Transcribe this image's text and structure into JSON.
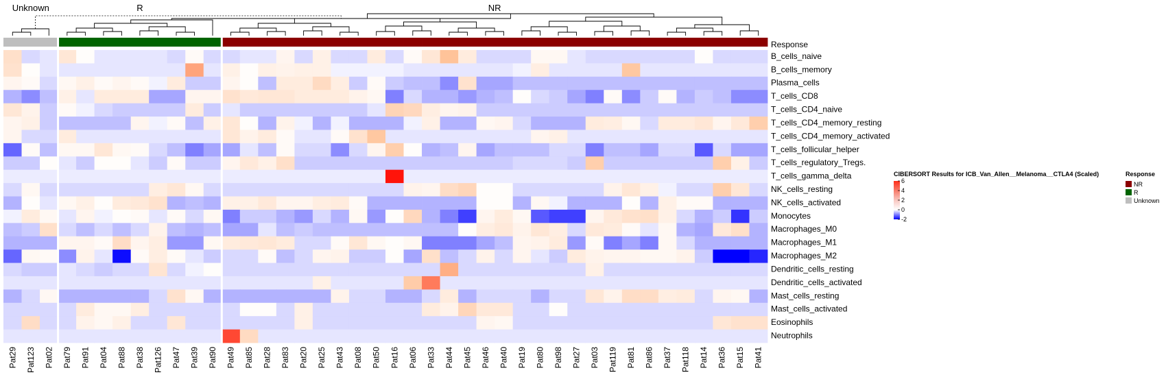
{
  "chart_data": {
    "type": "heatmap",
    "group_labels": [
      "Unknown",
      "R",
      "NR"
    ],
    "annotation_row_label": "Response",
    "legend_title": "CIBERSORT Results for ICB_Van_Allen__Melanoma__CTLA4 (Scaled)",
    "color_scale": {
      "ticks": [
        6,
        4,
        2,
        0,
        -2
      ],
      "min": -2,
      "mid": 0,
      "max": 6,
      "low_color": "#0000ff",
      "mid_color": "#ffffff",
      "high_color": "#ff0000"
    },
    "response_legend": {
      "title": "Response",
      "items": [
        {
          "label": "NR",
          "color": "#8b0000"
        },
        {
          "label": "R",
          "color": "#006400"
        },
        {
          "label": "Unknown",
          "color": "#bebebe"
        }
      ]
    },
    "samples": [
      "Pat29",
      "Pat123",
      "Pat02",
      "Pat79",
      "Pat91",
      "Pat04",
      "Pat88",
      "Pat38",
      "Pat126",
      "Pat47",
      "Pat39",
      "Pat90",
      "Pat49",
      "Pat85",
      "Pat28",
      "Pat83",
      "Pat20",
      "Pat25",
      "Pat43",
      "Pat08",
      "Pat50",
      "Pat16",
      "Pat06",
      "Pat33",
      "Pat44",
      "Pat45",
      "Pat46",
      "Pat40",
      "Pat19",
      "Pat80",
      "Pat98",
      "Pat27",
      "Pat03",
      "Pat119",
      "Pat81",
      "Pat86",
      "Pat37",
      "Pat118",
      "Pat14",
      "Pat36",
      "Pat15",
      "Pat41"
    ],
    "responses": [
      "Unknown",
      "Unknown",
      "Unknown",
      "R",
      "R",
      "R",
      "R",
      "R",
      "R",
      "R",
      "R",
      "R",
      "NR",
      "NR",
      "NR",
      "NR",
      "NR",
      "NR",
      "NR",
      "NR",
      "NR",
      "NR",
      "NR",
      "NR",
      "NR",
      "NR",
      "NR",
      "NR",
      "NR",
      "NR",
      "NR",
      "NR",
      "NR",
      "NR",
      "NR",
      "NR",
      "NR",
      "NR",
      "NR",
      "NR",
      "NR",
      "NR"
    ],
    "cell_types": [
      "B_cells_naive",
      "B_cells_memory",
      "Plasma_cells",
      "T_cells_CD8",
      "T_cells_CD4_naive",
      "T_cells_CD4_memory_resting",
      "T_cells_CD4_memory_activated",
      "T_cells_follicular_helper",
      "T_cells_regulatory_Tregs.",
      "T_cells_gamma_delta",
      "NK_cells_resting",
      "NK_cells_activated",
      "Monocytes",
      "Macrophages_M0",
      "Macrophages_M1",
      "Macrophages_M2",
      "Dendritic_cells_resting",
      "Dendritic_cells_activated",
      "Mast_cells_resting",
      "Mast_cells_activated",
      "Eosinophils",
      "Neutrophils"
    ],
    "values": [
      [
        1.3,
        -0.3,
        -0.2,
        1.0,
        0.1,
        -0.2,
        -0.2,
        -0.2,
        -0.2,
        -0.3,
        0.2,
        -0.3,
        -0.3,
        -0.2,
        -0.2,
        0.4,
        -0.3,
        0.6,
        -0.3,
        -0.3,
        0.8,
        -0.3,
        0.2,
        1.0,
        2.5,
        0.8,
        -0.3,
        -0.3,
        -0.3,
        0.3,
        0.3,
        -0.2,
        -0.3,
        -0.3,
        -0.3,
        -0.3,
        -0.3,
        -0.3,
        0.1,
        -0.3,
        -0.3,
        -0.3
      ],
      [
        1.2,
        0.1,
        -0.2,
        -0.2,
        -0.2,
        -0.2,
        -0.2,
        -0.2,
        -0.2,
        -0.2,
        3.2,
        -0.2,
        0.6,
        0.1,
        0.6,
        0.5,
        0.6,
        0.6,
        -0.1,
        -0.1,
        -0.1,
        -0.1,
        -0.2,
        -0.2,
        -0.2,
        -0.2,
        -0.2,
        -0.2,
        -0.1,
        0.7,
        -0.2,
        -0.2,
        -0.2,
        -0.2,
        2.3,
        -0.2,
        -0.2,
        -0.2,
        -0.2,
        -0.2,
        -0.2,
        -0.2
      ],
      [
        0.4,
        0.2,
        -0.3,
        0.3,
        0.6,
        0.2,
        0.4,
        0.2,
        -0.1,
        0.8,
        -0.4,
        -0.4,
        0.4,
        0.1,
        -0.5,
        0.8,
        0.8,
        1.5,
        0.7,
        -0.4,
        0.2,
        -0.4,
        -0.5,
        -0.5,
        -0.9,
        1.2,
        -0.7,
        -0.7,
        -0.5,
        -0.5,
        -0.5,
        -0.5,
        -0.5,
        -0.5,
        -0.5,
        -0.5,
        -0.5,
        -0.5,
        -0.5,
        -0.5,
        -0.5,
        -0.5
      ],
      [
        -0.6,
        -0.9,
        -0.5,
        0.6,
        -0.2,
        0.8,
        0.8,
        0.8,
        -0.7,
        -0.7,
        0.4,
        0.4,
        1.2,
        0.9,
        1.0,
        1.0,
        0.8,
        0.8,
        0.8,
        0.5,
        0.3,
        -1.0,
        -0.3,
        -0.6,
        -0.6,
        -0.8,
        -0.6,
        -0.5,
        0.1,
        -0.3,
        -0.4,
        -0.7,
        -1.0,
        0.2,
        -0.9,
        -0.4,
        0.2,
        -0.6,
        -0.4,
        -0.5,
        -0.9,
        -0.9
      ],
      [
        1.0,
        0.5,
        -0.4,
        0.2,
        -0.1,
        -0.3,
        -0.4,
        -0.4,
        -0.4,
        -0.4,
        0.8,
        -0.4,
        -0.2,
        -0.4,
        -0.4,
        -0.4,
        -0.4,
        -0.4,
        -0.4,
        -0.4,
        -0.2,
        1.8,
        1.6,
        0.7,
        0.4,
        0.5,
        -0.4,
        -0.4,
        -0.4,
        -0.4,
        -0.4,
        -0.4,
        -0.4,
        -0.4,
        -0.4,
        -0.4,
        -0.4,
        -0.4,
        -0.4,
        -0.4,
        -0.4,
        -0.4
      ],
      [
        0.4,
        0.6,
        -0.4,
        -0.5,
        -0.5,
        -0.5,
        -0.5,
        0.4,
        -0.1,
        0.2,
        -0.5,
        0.6,
        1.0,
        0.1,
        -0.6,
        0.5,
        -0.1,
        -0.6,
        -0.1,
        -0.6,
        -0.6,
        -0.6,
        -0.1,
        0.6,
        -0.6,
        -0.6,
        0.3,
        0.4,
        -0.3,
        -0.6,
        -0.6,
        -0.6,
        0.8,
        0.7,
        0.3,
        -0.3,
        0.8,
        0.8,
        1.0,
        0.4,
        0.9,
        2.0
      ],
      [
        0.4,
        -0.3,
        -0.3,
        0.8,
        -0.2,
        -0.2,
        -0.2,
        -0.2,
        -0.2,
        -0.2,
        -0.2,
        -0.2,
        1.0,
        0.5,
        0.8,
        0.2,
        -0.2,
        -0.2,
        0.2,
        1.2,
        2.3,
        -0.2,
        -0.2,
        -0.2,
        -0.2,
        -0.2,
        -0.2,
        -0.2,
        -0.2,
        0.4,
        0.6,
        -0.2,
        -0.2,
        -0.2,
        -0.2,
        -0.2,
        -0.2,
        -0.2,
        -0.2,
        -0.2,
        -0.2,
        -0.2
      ],
      [
        -1.2,
        0.2,
        -0.5,
        0.3,
        0.3,
        1.0,
        0.3,
        0.2,
        -0.3,
        -0.5,
        -1.0,
        -0.7,
        -0.7,
        -0.2,
        -0.5,
        0.2,
        -0.3,
        -0.3,
        -0.9,
        -0.3,
        0.4,
        2.0,
        0.1,
        -0.6,
        -0.5,
        0.4,
        -0.7,
        -0.5,
        -0.5,
        -0.5,
        -0.3,
        -0.3,
        -1.0,
        -0.5,
        -0.5,
        -0.7,
        -0.3,
        -0.3,
        -1.3,
        -0.3,
        -0.7,
        -0.7
      ],
      [
        -0.4,
        -0.4,
        0.1,
        -0.2,
        -0.4,
        0.1,
        0.1,
        -0.2,
        -0.4,
        0.2,
        -0.4,
        -0.4,
        0.4,
        0.9,
        0.6,
        1.3,
        -0.4,
        -0.4,
        -0.4,
        -0.4,
        -0.4,
        -0.4,
        -0.4,
        -0.4,
        -0.4,
        -0.4,
        -0.4,
        -0.4,
        -0.3,
        -0.3,
        -0.3,
        -0.4,
        2.0,
        -0.4,
        -0.4,
        -0.4,
        -0.4,
        -0.4,
        -0.4,
        2.0,
        0.6,
        -0.4
      ],
      [
        -0.15,
        -0.15,
        -0.15,
        -0.15,
        -0.15,
        -0.15,
        -0.15,
        -0.15,
        -0.15,
        -0.15,
        -0.15,
        -0.15,
        -0.15,
        -0.15,
        -0.15,
        -0.15,
        -0.15,
        -0.15,
        -0.15,
        -0.15,
        -0.15,
        6.0,
        -0.15,
        -0.15,
        -0.15,
        -0.15,
        -0.15,
        -0.15,
        -0.15,
        -0.15,
        -0.15,
        -0.15,
        -0.15,
        -0.15,
        -0.15,
        -0.15,
        -0.15,
        -0.15,
        -0.15,
        -0.15,
        -0.15,
        -0.15
      ],
      [
        -0.3,
        0.3,
        -0.3,
        -0.3,
        -0.3,
        -0.3,
        -0.3,
        -0.3,
        0.7,
        1.0,
        0.3,
        -0.3,
        -0.3,
        -0.3,
        -0.3,
        -0.3,
        -0.3,
        -0.3,
        -0.3,
        -0.3,
        -0.3,
        -0.3,
        0.5,
        0.4,
        1.4,
        1.7,
        0.1,
        0.1,
        -0.3,
        -0.3,
        -0.3,
        -0.3,
        -0.3,
        0.5,
        1.0,
        0.6,
        -0.1,
        -0.3,
        -0.3,
        2.0,
        1.0,
        -0.3
      ],
      [
        -0.6,
        0.1,
        -0.2,
        0.3,
        0.6,
        0.1,
        0.8,
        0.9,
        1.2,
        -0.6,
        -0.5,
        -0.6,
        0.6,
        0.6,
        0.9,
        0.4,
        0.4,
        0.7,
        0.8,
        0.2,
        -0.6,
        -0.6,
        -0.6,
        -0.6,
        -0.6,
        -0.6,
        0.1,
        0.1,
        -0.6,
        0.3,
        -0.1,
        -0.6,
        -0.6,
        -0.6,
        0.1,
        -0.6,
        0.6,
        0.2,
        0.2,
        -0.6,
        -0.6,
        -0.6
      ],
      [
        -0.1,
        0.8,
        0.3,
        -0.2,
        0.4,
        -0.1,
        0.1,
        0.2,
        -0.2,
        0.2,
        -0.3,
        0.3,
        -1.0,
        -0.4,
        -0.4,
        -0.6,
        -0.8,
        -0.3,
        -0.6,
        0.3,
        -0.8,
        0.1,
        1.6,
        -0.6,
        -1.0,
        -1.5,
        0.4,
        0.8,
        0.3,
        -1.3,
        -1.5,
        -1.5,
        0.4,
        0.9,
        1.2,
        1.3,
        0.6,
        -0.3,
        -0.6,
        -0.4,
        -1.6,
        -0.4
      ],
      [
        -0.5,
        -0.4,
        1.3,
        -0.3,
        -0.5,
        -0.3,
        -0.5,
        -0.3,
        0.5,
        -0.5,
        -0.6,
        -0.5,
        -0.7,
        -0.7,
        -0.2,
        -0.5,
        -0.4,
        -0.5,
        -0.5,
        -0.5,
        -0.5,
        -0.5,
        -0.5,
        -0.5,
        -0.5,
        0.1,
        0.7,
        0.9,
        0.5,
        1.0,
        0.7,
        -0.3,
        0.9,
        0.8,
        0.2,
        -0.2,
        0.3,
        -0.6,
        -0.7,
        0.9,
        1.3,
        -0.6
      ],
      [
        -0.6,
        -0.6,
        -0.6,
        0.4,
        0.4,
        0.2,
        1.4,
        0.4,
        0.7,
        -0.8,
        -0.8,
        0.3,
        0.8,
        0.9,
        1.0,
        0.8,
        -0.3,
        -0.3,
        0.2,
        1.0,
        0.3,
        0.1,
        0.3,
        -1.0,
        -1.0,
        -1.0,
        -0.7,
        -0.5,
        0.4,
        0.5,
        0.8,
        -0.8,
        0.2,
        -1.0,
        -0.7,
        -1.0,
        0.3,
        -0.3,
        -0.6,
        -0.6,
        -0.6,
        -0.6
      ],
      [
        -1.2,
        0.3,
        0.2,
        -0.9,
        0.5,
        -0.2,
        -1.9,
        0.2,
        0.7,
        0.2,
        -0.2,
        -0.4,
        -0.3,
        -0.3,
        0.2,
        -0.5,
        -0.3,
        0.4,
        0.5,
        -0.4,
        -0.4,
        0.1,
        -0.7,
        1.3,
        -0.5,
        -0.3,
        0.5,
        -0.3,
        0.4,
        -0.2,
        -0.4,
        0.8,
        0.5,
        0.4,
        0.4,
        0.3,
        0.3,
        0.5,
        -0.4,
        -2.0,
        -2.0,
        -1.7
      ],
      [
        -0.3,
        -0.4,
        -0.4,
        -0.2,
        -0.3,
        -0.4,
        -0.3,
        -0.3,
        1.1,
        -0.3,
        -0.1,
        0.1,
        -0.3,
        -0.3,
        -0.3,
        -0.3,
        -0.3,
        -0.3,
        -0.3,
        -0.3,
        -0.3,
        -0.3,
        -0.3,
        -0.3,
        3.0,
        -0.3,
        -0.3,
        -0.3,
        -0.3,
        -0.3,
        -0.3,
        -0.3,
        0.6,
        -0.3,
        -0.3,
        -0.3,
        -0.3,
        -0.3,
        -0.3,
        -0.3,
        -0.3,
        -0.3
      ],
      [
        -0.2,
        -0.2,
        -0.2,
        -0.2,
        -0.2,
        -0.2,
        -0.2,
        -0.2,
        -0.2,
        -0.2,
        -0.2,
        -0.2,
        -0.2,
        -0.2,
        -0.2,
        -0.2,
        -0.2,
        0.6,
        -0.2,
        -0.2,
        -0.2,
        -0.2,
        2.1,
        4.0,
        -0.2,
        -0.2,
        -0.2,
        -0.2,
        -0.2,
        -0.2,
        -0.2,
        -0.2,
        -0.2,
        -0.2,
        -0.2,
        -0.2,
        -0.2,
        -0.2,
        -0.2,
        -0.2,
        -0.2,
        -0.2
      ],
      [
        -0.6,
        -0.3,
        0.3,
        -0.6,
        -0.6,
        -0.6,
        -0.6,
        -0.6,
        -0.3,
        1.2,
        0.3,
        -0.6,
        -0.6,
        -0.6,
        -0.6,
        -0.6,
        -0.6,
        -0.6,
        0.5,
        -0.3,
        -0.3,
        -0.6,
        -0.6,
        -0.3,
        0.8,
        -0.6,
        -0.3,
        -0.3,
        -0.3,
        -0.6,
        -0.3,
        -0.3,
        1.0,
        0.5,
        1.4,
        1.4,
        0.7,
        0.8,
        -0.3,
        0.4,
        0.3,
        -0.6
      ],
      [
        -0.3,
        -0.3,
        -0.3,
        -0.3,
        0.8,
        0.3,
        0.3,
        0.7,
        -0.3,
        -0.3,
        -0.3,
        -0.3,
        -0.3,
        0.1,
        0.1,
        -0.3,
        0.6,
        -0.3,
        -0.3,
        -0.3,
        -0.3,
        -0.3,
        -0.3,
        0.8,
        0.5,
        1.7,
        0.9,
        0.9,
        -0.3,
        -0.3,
        0.1,
        -0.3,
        -0.3,
        -0.3,
        -0.3,
        -0.3,
        -0.3,
        -0.3,
        -0.3,
        -0.3,
        -0.3,
        -0.3
      ],
      [
        -0.3,
        1.4,
        -0.3,
        -0.3,
        0.5,
        0.3,
        0.6,
        -0.3,
        -0.3,
        1.0,
        -0.3,
        -0.3,
        -0.3,
        -0.3,
        -0.3,
        -0.3,
        0.6,
        -0.3,
        -0.3,
        -0.3,
        -0.3,
        -0.3,
        -0.3,
        -0.3,
        -0.3,
        -0.3,
        0.4,
        0.3,
        -0.3,
        -0.3,
        -0.3,
        -0.3,
        -0.3,
        -0.3,
        -0.3,
        -0.3,
        -0.3,
        -0.3,
        -0.3,
        1.0,
        1.2,
        1.2
      ],
      [
        -0.2,
        -0.2,
        -0.2,
        -0.2,
        -0.2,
        -0.2,
        -0.2,
        -0.2,
        -0.2,
        -0.2,
        -0.2,
        -0.2,
        5.0,
        1.5,
        -0.2,
        -0.2,
        -0.2,
        -0.2,
        -0.2,
        -0.2,
        -0.2,
        -0.2,
        -0.2,
        -0.2,
        -0.2,
        -0.2,
        -0.2,
        -0.2,
        -0.2,
        -0.2,
        -0.2,
        -0.2,
        -0.2,
        -0.2,
        -0.2,
        -0.2,
        -0.2,
        -0.2,
        -0.2,
        -0.2,
        -0.2,
        -0.2
      ]
    ]
  }
}
